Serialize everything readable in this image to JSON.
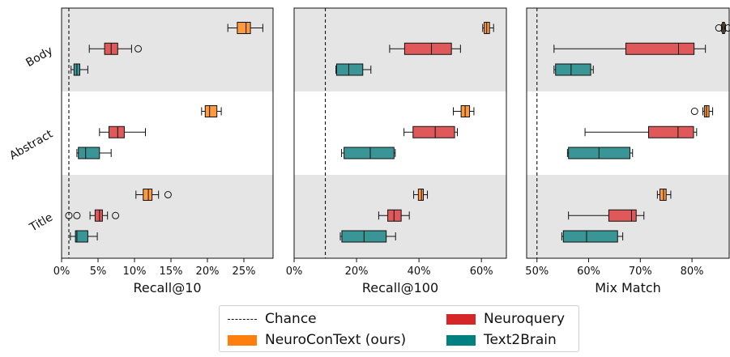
{
  "chart_data": {
    "type": "boxplot",
    "categories": [
      "Body",
      "Abstract",
      "Title"
    ],
    "legend": {
      "placement": "bottom-center",
      "entries": [
        {
          "key": "chance",
          "label": "Chance",
          "style": "dashed-line"
        },
        {
          "key": "neuroquery",
          "label": "Neuroquery",
          "color": "#d62728"
        },
        {
          "key": "neurocontext",
          "label": "NeuroConText (ours)",
          "color": "#ff7f0e"
        },
        {
          "key": "text2brain",
          "label": "Text2Brain",
          "color": "#008080"
        }
      ]
    },
    "panels": [
      {
        "xlabel": "Recall@10",
        "xlim": [
          0,
          29
        ],
        "xticks": [
          0,
          5,
          10,
          15,
          20,
          25
        ],
        "xticklabels": [
          "0%",
          "5%",
          "10%",
          "15%",
          "20%",
          "25%"
        ],
        "chance": 1,
        "groups": [
          {
            "category": "Body",
            "boxes": [
              {
                "series": "neurocontext",
                "whislo": 22.8,
                "q1": 24.1,
                "med": 25.3,
                "q3": 25.9,
                "whishi": 27.6,
                "fliers": []
              },
              {
                "series": "neuroquery",
                "whislo": 3.8,
                "q1": 5.9,
                "med": 6.8,
                "q3": 7.7,
                "whishi": 9.6,
                "fliers": [
                  10.5
                ]
              },
              {
                "series": "text2brain",
                "whislo": 1.3,
                "q1": 1.7,
                "med": 2.1,
                "q3": 2.5,
                "whishi": 3.6,
                "fliers": []
              }
            ]
          },
          {
            "category": "Abstract",
            "boxes": [
              {
                "series": "neurocontext",
                "whislo": 19.2,
                "q1": 19.7,
                "med": 20.3,
                "q3": 21.3,
                "whishi": 21.9,
                "fliers": []
              },
              {
                "series": "neuroquery",
                "whislo": 5.2,
                "q1": 6.5,
                "med": 7.7,
                "q3": 8.6,
                "whishi": 11.5,
                "fliers": []
              },
              {
                "series": "text2brain",
                "whislo": 2.1,
                "q1": 2.3,
                "med": 3.3,
                "q3": 5.2,
                "whishi": 6.8,
                "fliers": []
              }
            ]
          },
          {
            "category": "Title",
            "boxes": [
              {
                "series": "neurocontext",
                "whislo": 10.2,
                "q1": 11.2,
                "med": 11.9,
                "q3": 12.4,
                "whishi": 13.3,
                "fliers": [
                  14.6
                ]
              },
              {
                "series": "neuroquery",
                "whislo": 3.9,
                "q1": 4.6,
                "med": 5.2,
                "q3": 5.6,
                "whishi": 6.3,
                "fliers": [
                  1.0,
                  2.1,
                  7.4
                ]
              },
              {
                "series": "text2brain",
                "whislo": 1.2,
                "q1": 1.9,
                "med": 2.1,
                "q3": 3.6,
                "whishi": 4.9,
                "fliers": []
              }
            ]
          }
        ]
      },
      {
        "xlabel": "Recall@100",
        "xlim": [
          0,
          68
        ],
        "xticks": [
          0,
          20,
          40,
          60
        ],
        "xticklabels": [
          "0%",
          "20%",
          "40%",
          "60%"
        ],
        "chance": 10,
        "groups": [
          {
            "category": "Body",
            "boxes": [
              {
                "series": "neurocontext",
                "whislo": 60.4,
                "q1": 60.9,
                "med": 61.7,
                "q3": 62.6,
                "whishi": 63.9,
                "fliers": []
              },
              {
                "series": "neuroquery",
                "whislo": 30.6,
                "q1": 35.4,
                "med": 44.0,
                "q3": 50.4,
                "whishi": 53.3,
                "fliers": []
              },
              {
                "series": "text2brain",
                "whislo": 13.4,
                "q1": 13.6,
                "med": 17.5,
                "q3": 22.0,
                "whishi": 24.6,
                "fliers": []
              }
            ]
          },
          {
            "category": "Abstract",
            "boxes": [
              {
                "series": "neurocontext",
                "whislo": 51.0,
                "q1": 53.5,
                "med": 54.8,
                "q3": 56.2,
                "whishi": 57.6,
                "fliers": []
              },
              {
                "series": "neuroquery",
                "whislo": 35.2,
                "q1": 38.1,
                "med": 45.2,
                "q3": 51.4,
                "whishi": 52.3,
                "fliers": []
              },
              {
                "series": "text2brain",
                "whislo": 15.2,
                "q1": 16.0,
                "med": 24.4,
                "q3": 32.0,
                "whishi": 32.4,
                "fliers": []
              }
            ]
          },
          {
            "category": "Title",
            "boxes": [
              {
                "series": "neurocontext",
                "whislo": 38.3,
                "q1": 39.8,
                "med": 40.8,
                "q3": 41.4,
                "whishi": 42.7,
                "fliers": []
              },
              {
                "series": "neuroquery",
                "whislo": 27.1,
                "q1": 30.0,
                "med": 32.0,
                "q3": 34.3,
                "whishi": 36.9,
                "fliers": []
              },
              {
                "series": "text2brain",
                "whislo": 14.8,
                "q1": 15.3,
                "med": 22.4,
                "q3": 29.5,
                "whishi": 32.5,
                "fliers": []
              }
            ]
          }
        ]
      },
      {
        "xlabel": "Mix Match",
        "xlim": [
          48,
          87.2
        ],
        "xticks": [
          50,
          60,
          70,
          80
        ],
        "xticklabels": [
          "50%",
          "60%",
          "70%",
          "80%"
        ],
        "chance": 50,
        "groups": [
          {
            "category": "Body",
            "boxes": [
              {
                "series": "neurocontext",
                "whislo": 85.7,
                "q1": 85.9,
                "med": 86.1,
                "q3": 86.3,
                "whishi": 86.5,
                "fliers": [
                  85.2,
                  87.0
                ]
              },
              {
                "series": "neuroquery",
                "whislo": 53.3,
                "q1": 67.2,
                "med": 77.4,
                "q3": 80.4,
                "whishi": 82.6,
                "fliers": []
              },
              {
                "series": "text2brain",
                "whislo": 53.3,
                "q1": 53.6,
                "med": 56.6,
                "q3": 60.4,
                "whishi": 60.9,
                "fliers": []
              }
            ]
          },
          {
            "category": "Abstract",
            "boxes": [
              {
                "series": "neurocontext",
                "whislo": 82.1,
                "q1": 82.4,
                "med": 82.8,
                "q3": 83.3,
                "whishi": 84.0,
                "fliers": [
                  80.5
                ]
              },
              {
                "series": "neuroquery",
                "whislo": 59.3,
                "q1": 71.6,
                "med": 77.3,
                "q3": 80.3,
                "whishi": 80.9,
                "fliers": []
              },
              {
                "series": "text2brain",
                "whislo": 55.9,
                "q1": 56.1,
                "med": 62.0,
                "q3": 68.0,
                "whishi": 68.5,
                "fliers": []
              }
            ]
          },
          {
            "category": "Title",
            "boxes": [
              {
                "series": "neurocontext",
                "whislo": 73.3,
                "q1": 73.8,
                "med": 74.5,
                "q3": 75.0,
                "whishi": 75.9,
                "fliers": []
              },
              {
                "series": "neuroquery",
                "whislo": 56.1,
                "q1": 63.9,
                "med": 68.3,
                "q3": 69.2,
                "whishi": 70.7,
                "fliers": []
              },
              {
                "series": "text2brain",
                "whislo": 54.8,
                "q1": 55.1,
                "med": 59.6,
                "q3": 65.6,
                "whishi": 66.6,
                "fliers": []
              }
            ]
          }
        ]
      }
    ]
  }
}
